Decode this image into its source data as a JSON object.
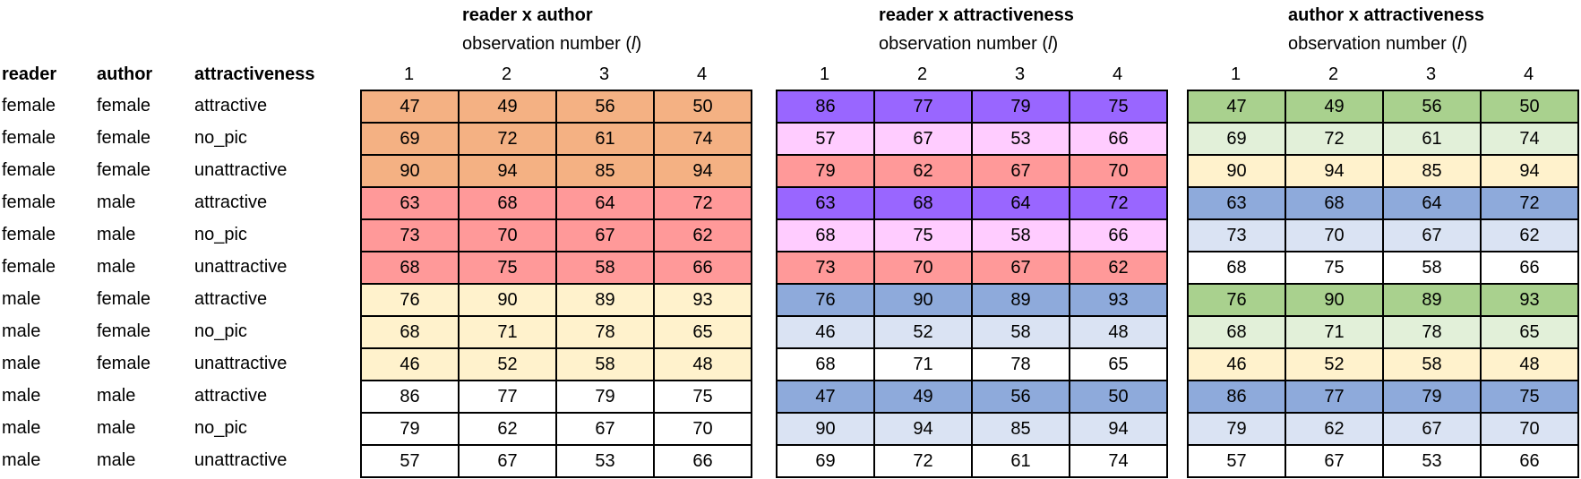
{
  "factor_headers": {
    "reader": "reader",
    "author": "author",
    "attractiveness": "attractiveness"
  },
  "observation_label": {
    "prefix": "observation number (",
    "var": "l",
    "suffix": ")"
  },
  "observation_numbers": [
    "1",
    "2",
    "3",
    "4"
  ],
  "factor_rows": [
    {
      "reader": "female",
      "author": "female",
      "attractiveness": "attractive"
    },
    {
      "reader": "female",
      "author": "female",
      "attractiveness": "no_pic"
    },
    {
      "reader": "female",
      "author": "female",
      "attractiveness": "unattractive"
    },
    {
      "reader": "female",
      "author": "male",
      "attractiveness": "attractive"
    },
    {
      "reader": "female",
      "author": "male",
      "attractiveness": "no_pic"
    },
    {
      "reader": "female",
      "author": "male",
      "attractiveness": "unattractive"
    },
    {
      "reader": "male",
      "author": "female",
      "attractiveness": "attractive"
    },
    {
      "reader": "male",
      "author": "female",
      "attractiveness": "no_pic"
    },
    {
      "reader": "male",
      "author": "female",
      "attractiveness": "unattractive"
    },
    {
      "reader": "male",
      "author": "male",
      "attractiveness": "attractive"
    },
    {
      "reader": "male",
      "author": "male",
      "attractiveness": "no_pic"
    },
    {
      "reader": "male",
      "author": "male",
      "attractiveness": "unattractive"
    }
  ],
  "tables": [
    {
      "title": "reader x author",
      "rows": [
        {
          "values": [
            "47",
            "49",
            "56",
            "50"
          ],
          "color": "#f4b183"
        },
        {
          "values": [
            "69",
            "72",
            "61",
            "74"
          ],
          "color": "#f4b183"
        },
        {
          "values": [
            "90",
            "94",
            "85",
            "94"
          ],
          "color": "#f4b183"
        },
        {
          "values": [
            "63",
            "68",
            "64",
            "72"
          ],
          "color": "#ff9999"
        },
        {
          "values": [
            "73",
            "70",
            "67",
            "62"
          ],
          "color": "#ff9999"
        },
        {
          "values": [
            "68",
            "75",
            "58",
            "66"
          ],
          "color": "#ff9999"
        },
        {
          "values": [
            "76",
            "90",
            "89",
            "93"
          ],
          "color": "#fff2cc"
        },
        {
          "values": [
            "68",
            "71",
            "78",
            "65"
          ],
          "color": "#fff2cc"
        },
        {
          "values": [
            "46",
            "52",
            "58",
            "48"
          ],
          "color": "#fff2cc"
        },
        {
          "values": [
            "86",
            "77",
            "79",
            "75"
          ],
          "color": "#ffffff"
        },
        {
          "values": [
            "79",
            "62",
            "67",
            "70"
          ],
          "color": "#ffffff"
        },
        {
          "values": [
            "57",
            "67",
            "53",
            "66"
          ],
          "color": "#ffffff"
        }
      ]
    },
    {
      "title": "reader x attractiveness",
      "rows": [
        {
          "values": [
            "86",
            "77",
            "79",
            "75"
          ],
          "color": "#9966ff"
        },
        {
          "values": [
            "57",
            "67",
            "53",
            "66"
          ],
          "color": "#ffccff"
        },
        {
          "values": [
            "79",
            "62",
            "67",
            "70"
          ],
          "color": "#ff9999"
        },
        {
          "values": [
            "63",
            "68",
            "64",
            "72"
          ],
          "color": "#9966ff"
        },
        {
          "values": [
            "68",
            "75",
            "58",
            "66"
          ],
          "color": "#ffccff"
        },
        {
          "values": [
            "73",
            "70",
            "67",
            "62"
          ],
          "color": "#ff9999"
        },
        {
          "values": [
            "76",
            "90",
            "89",
            "93"
          ],
          "color": "#8eaadb"
        },
        {
          "values": [
            "46",
            "52",
            "58",
            "48"
          ],
          "color": "#dae3f3"
        },
        {
          "values": [
            "68",
            "71",
            "78",
            "65"
          ],
          "color": "#ffffff"
        },
        {
          "values": [
            "47",
            "49",
            "56",
            "50"
          ],
          "color": "#8eaadb"
        },
        {
          "values": [
            "90",
            "94",
            "85",
            "94"
          ],
          "color": "#dae3f3"
        },
        {
          "values": [
            "69",
            "72",
            "61",
            "74"
          ],
          "color": "#ffffff"
        }
      ]
    },
    {
      "title": "author x attractiveness",
      "rows": [
        {
          "values": [
            "47",
            "49",
            "56",
            "50"
          ],
          "color": "#a9d18e"
        },
        {
          "values": [
            "69",
            "72",
            "61",
            "74"
          ],
          "color": "#e2f0d9"
        },
        {
          "values": [
            "90",
            "94",
            "85",
            "94"
          ],
          "color": "#fff2cc"
        },
        {
          "values": [
            "63",
            "68",
            "64",
            "72"
          ],
          "color": "#8eaadb"
        },
        {
          "values": [
            "73",
            "70",
            "67",
            "62"
          ],
          "color": "#dae3f3"
        },
        {
          "values": [
            "68",
            "75",
            "58",
            "66"
          ],
          "color": "#ffffff"
        },
        {
          "values": [
            "76",
            "90",
            "89",
            "93"
          ],
          "color": "#a9d18e"
        },
        {
          "values": [
            "68",
            "71",
            "78",
            "65"
          ],
          "color": "#e2f0d9"
        },
        {
          "values": [
            "46",
            "52",
            "58",
            "48"
          ],
          "color": "#fff2cc"
        },
        {
          "values": [
            "86",
            "77",
            "79",
            "75"
          ],
          "color": "#8eaadb"
        },
        {
          "values": [
            "79",
            "62",
            "67",
            "70"
          ],
          "color": "#dae3f3"
        },
        {
          "values": [
            "57",
            "67",
            "53",
            "66"
          ],
          "color": "#ffffff"
        }
      ]
    }
  ]
}
